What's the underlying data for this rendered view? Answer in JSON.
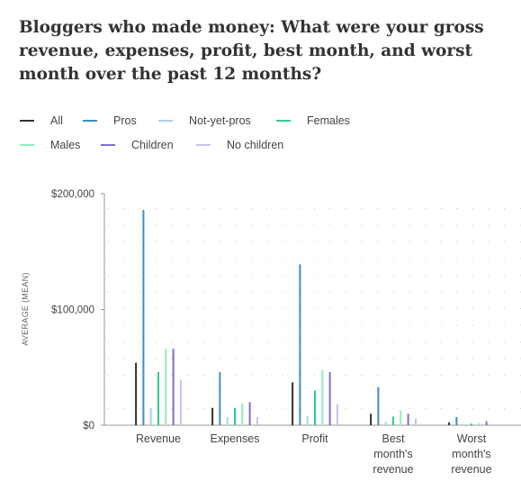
{
  "chart_data": {
    "type": "bar",
    "title": "Bloggers who made money: What were your gross revenue, expenses, profit, best month, and worst month over the past 12 months?",
    "ylabel": "AVERAGE (MEAN)",
    "xlabel": "",
    "ylim": [
      0,
      200000
    ],
    "yticks": [
      {
        "value": 0,
        "label": "$0"
      },
      {
        "value": 100000,
        "label": "$100,000"
      },
      {
        "value": 200000,
        "label": "$200,000"
      }
    ],
    "grid": true,
    "legend_position": "top",
    "categories": [
      [
        "Revenue"
      ],
      [
        "Expenses"
      ],
      [
        "Profit"
      ],
      [
        "Best",
        "month's",
        "revenue"
      ],
      [
        "Worst",
        "month's",
        "revenue"
      ]
    ],
    "series": [
      {
        "name": "All",
        "color": "#333333",
        "values": [
          54000,
          15000,
          37000,
          10000,
          2500
        ]
      },
      {
        "name": "Pros",
        "color": "#3a8fc4",
        "values": [
          186000,
          46000,
          139000,
          33000,
          7000
        ]
      },
      {
        "name": "Not-yet-pros",
        "color": "#a6d3ee",
        "values": [
          15000,
          7000,
          8000,
          3000,
          1000
        ]
      },
      {
        "name": "Females",
        "color": "#2ecc8b",
        "values": [
          46000,
          15000,
          30000,
          7500,
          1500
        ]
      },
      {
        "name": "Males",
        "color": "#8ef0c0",
        "values": [
          66000,
          19000,
          48000,
          13000,
          2000
        ]
      },
      {
        "name": "Children",
        "color": "#7a6fd0",
        "values": [
          66000,
          20000,
          46000,
          10000,
          3500
        ]
      },
      {
        "name": "No children",
        "color": "#c6c2f0",
        "values": [
          39000,
          7000,
          18000,
          6000,
          1000
        ]
      }
    ]
  }
}
